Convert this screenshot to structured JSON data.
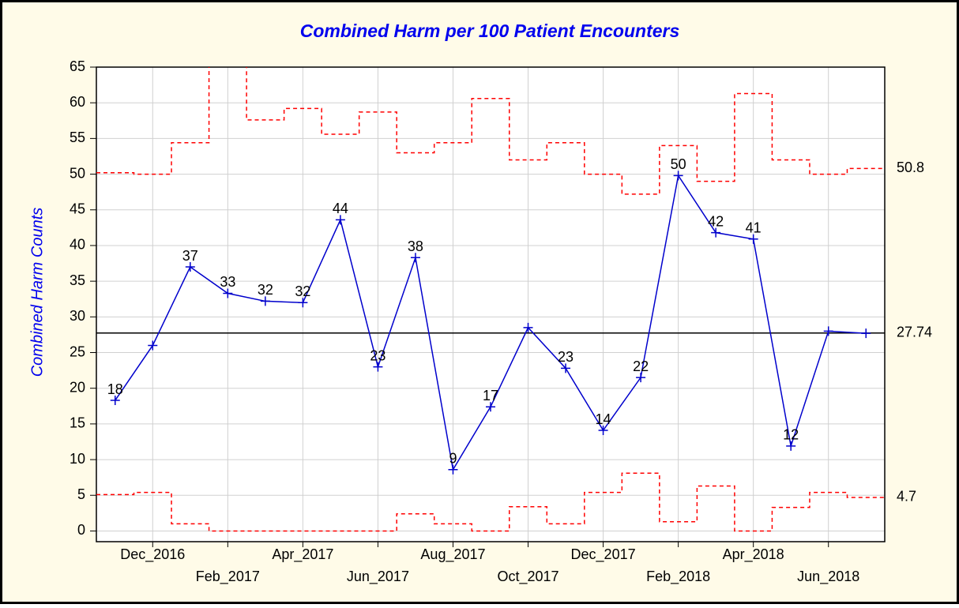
{
  "chart_data": {
    "type": "control",
    "title": "Combined Harm per 100 Patient Encounters",
    "y_label": "Combined Harm Counts",
    "categories": [
      null,
      "Dec_2016",
      null,
      "Feb_2017",
      null,
      "Apr_2017",
      null,
      "Jun_2017",
      null,
      "Aug_2017",
      null,
      "Oct_2017",
      null,
      "Dec_2017",
      null,
      "Feb_2018",
      null,
      "Apr_2018",
      null,
      "Jun_2018",
      null
    ],
    "series": [
      {
        "color": "#0000cc",
        "style": "line",
        "values": [
          18.3,
          26,
          37,
          33.3,
          32.2,
          32,
          43.6,
          23,
          38.3,
          8.6,
          17.4,
          28.5,
          22.8,
          14.1,
          21.5,
          49.8,
          41.8,
          40.9,
          11.9,
          28,
          27.7
        ],
        "value_labels": [
          "18",
          null,
          "37",
          "33",
          "32",
          "32",
          "44",
          "23",
          "38",
          "9",
          "17",
          null,
          "23",
          "14",
          "22",
          "50",
          "42",
          "41",
          "12",
          null,
          null
        ]
      },
      {
        "color": "#ff0000",
        "style": "step",
        "values": [
          50.2,
          50,
          54.4,
          68,
          57.6,
          59.2,
          55.6,
          58.7,
          53,
          54.4,
          60.6,
          52,
          54.4,
          50,
          47.2,
          54,
          49,
          61.3,
          52,
          50,
          50.8
        ]
      },
      {
        "color": "#ff0000",
        "style": "step",
        "values": [
          5.1,
          5.4,
          1,
          0,
          0,
          0,
          0,
          0,
          2.4,
          1,
          0,
          3.4,
          1,
          5.4,
          8.1,
          1.3,
          6.3,
          0,
          3.3,
          5.4,
          4.7
        ]
      }
    ],
    "center_line": 27.74,
    "ylim": [
      -1.5,
      65
    ],
    "yticks": [
      0,
      5,
      10,
      15,
      20,
      25,
      30,
      35,
      40,
      45,
      50,
      55,
      60,
      65
    ],
    "grid": true
  }
}
